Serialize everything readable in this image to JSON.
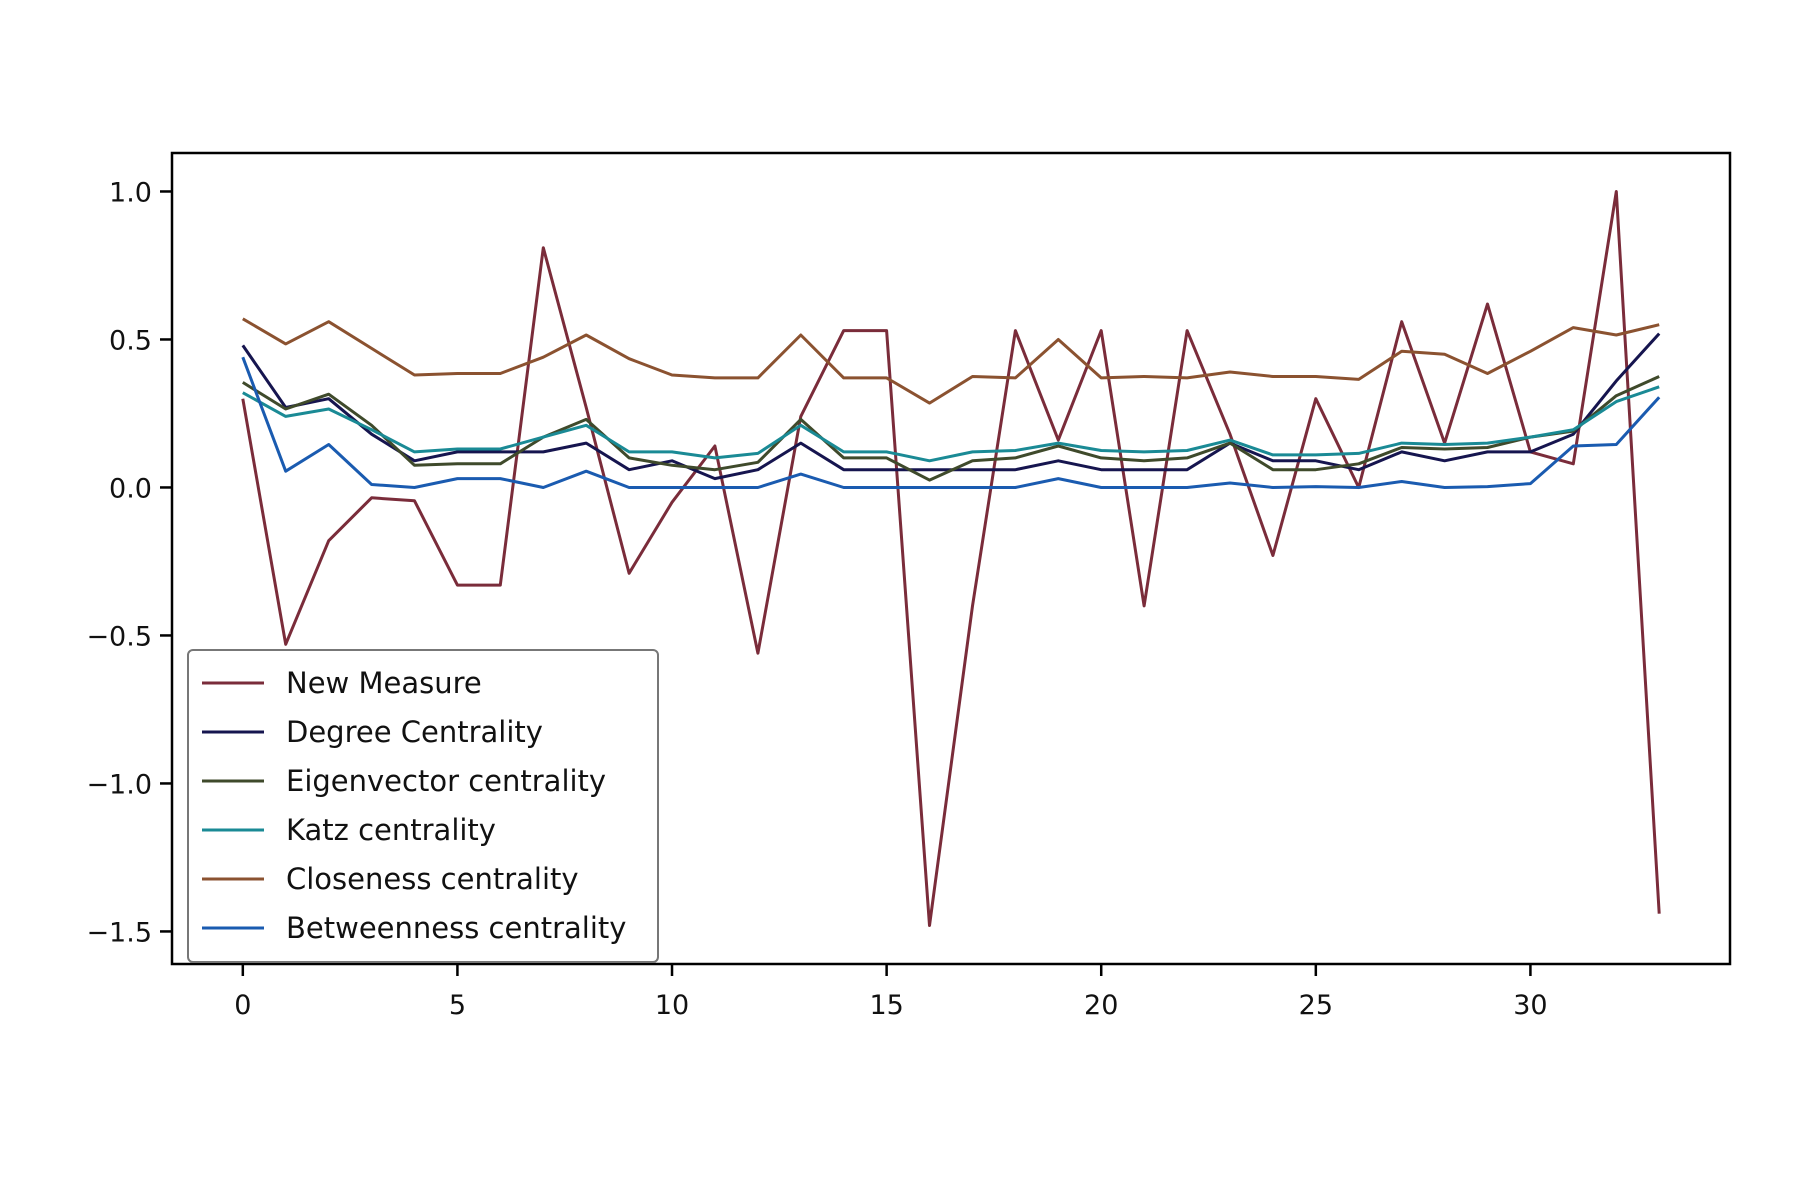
{
  "chart_data": {
    "type": "line",
    "title": "",
    "xlabel": "",
    "ylabel": "",
    "xlim": [
      -1.65,
      34.65
    ],
    "ylim": [
      -1.61,
      1.13
    ],
    "x_ticks": [
      0,
      5,
      10,
      15,
      20,
      25,
      30
    ],
    "x_tick_labels": [
      "0",
      "5",
      "10",
      "15",
      "20",
      "25",
      "30"
    ],
    "y_ticks": [
      1.0,
      0.5,
      0.0,
      -0.5,
      -1.0,
      -1.5
    ],
    "y_tick_labels": [
      "1.0",
      "0.5",
      "0.0",
      "−0.5",
      "−1.0",
      "−1.5"
    ],
    "grid": false,
    "legend_position": "lower-left",
    "x": [
      0,
      1,
      2,
      3,
      4,
      5,
      6,
      7,
      8,
      9,
      10,
      11,
      12,
      13,
      14,
      15,
      16,
      17,
      18,
      19,
      20,
      21,
      22,
      23,
      24,
      25,
      26,
      27,
      28,
      29,
      30,
      31,
      32,
      33
    ],
    "series": [
      {
        "name": "New Measure",
        "color": "#7a2c3a",
        "values": [
          0.3,
          -0.53,
          -0.18,
          -0.035,
          -0.045,
          -0.33,
          -0.33,
          0.81,
          0.27,
          -0.29,
          -0.05,
          0.14,
          -0.56,
          0.24,
          0.53,
          0.53,
          -1.48,
          -0.4,
          0.53,
          0.16,
          0.53,
          -0.4,
          0.53,
          0.18,
          -0.23,
          0.3,
          0.0,
          0.56,
          0.15,
          0.62,
          0.12,
          0.08,
          1.0,
          -1.44
        ]
      },
      {
        "name": "Degree Centrality",
        "color": "#16154f",
        "values": [
          0.48,
          0.27,
          0.3,
          0.18,
          0.09,
          0.12,
          0.12,
          0.12,
          0.15,
          0.06,
          0.09,
          0.03,
          0.06,
          0.15,
          0.06,
          0.06,
          0.06,
          0.06,
          0.06,
          0.09,
          0.06,
          0.06,
          0.06,
          0.15,
          0.09,
          0.09,
          0.06,
          0.12,
          0.09,
          0.12,
          0.12,
          0.18,
          0.36,
          0.52
        ]
      },
      {
        "name": "Eigenvector centrality",
        "color": "#3f4a2b",
        "values": [
          0.355,
          0.265,
          0.315,
          0.21,
          0.075,
          0.08,
          0.08,
          0.17,
          0.23,
          0.1,
          0.075,
          0.06,
          0.085,
          0.23,
          0.1,
          0.1,
          0.025,
          0.09,
          0.1,
          0.14,
          0.1,
          0.09,
          0.1,
          0.15,
          0.06,
          0.06,
          0.08,
          0.135,
          0.13,
          0.135,
          0.17,
          0.19,
          0.31,
          0.375
        ]
      },
      {
        "name": "Katz centrality",
        "color": "#1a8a95",
        "values": [
          0.32,
          0.24,
          0.265,
          0.195,
          0.12,
          0.13,
          0.13,
          0.17,
          0.21,
          0.12,
          0.12,
          0.1,
          0.115,
          0.21,
          0.12,
          0.12,
          0.09,
          0.12,
          0.125,
          0.15,
          0.125,
          0.12,
          0.125,
          0.16,
          0.11,
          0.11,
          0.115,
          0.15,
          0.145,
          0.15,
          0.17,
          0.195,
          0.29,
          0.34
        ]
      },
      {
        "name": "Closeness centrality",
        "color": "#8b5230",
        "values": [
          0.57,
          0.485,
          0.56,
          0.47,
          0.38,
          0.385,
          0.385,
          0.44,
          0.515,
          0.435,
          0.38,
          0.37,
          0.37,
          0.515,
          0.37,
          0.37,
          0.285,
          0.375,
          0.37,
          0.5,
          0.37,
          0.375,
          0.37,
          0.39,
          0.375,
          0.375,
          0.365,
          0.46,
          0.45,
          0.385,
          0.46,
          0.54,
          0.515,
          0.55
        ]
      },
      {
        "name": "Betweenness centrality",
        "color": "#1a5bb0",
        "values": [
          0.44,
          0.055,
          0.145,
          0.01,
          0.0,
          0.03,
          0.03,
          0.0,
          0.055,
          0.0,
          0.0,
          0.0,
          0.0,
          0.045,
          0.0,
          0.0,
          0.0,
          0.0,
          0.0,
          0.03,
          0.0,
          0.0,
          0.0,
          0.015,
          0.0,
          0.003,
          0.0,
          0.02,
          0.0,
          0.003,
          0.013,
          0.14,
          0.145,
          0.305
        ]
      }
    ]
  }
}
